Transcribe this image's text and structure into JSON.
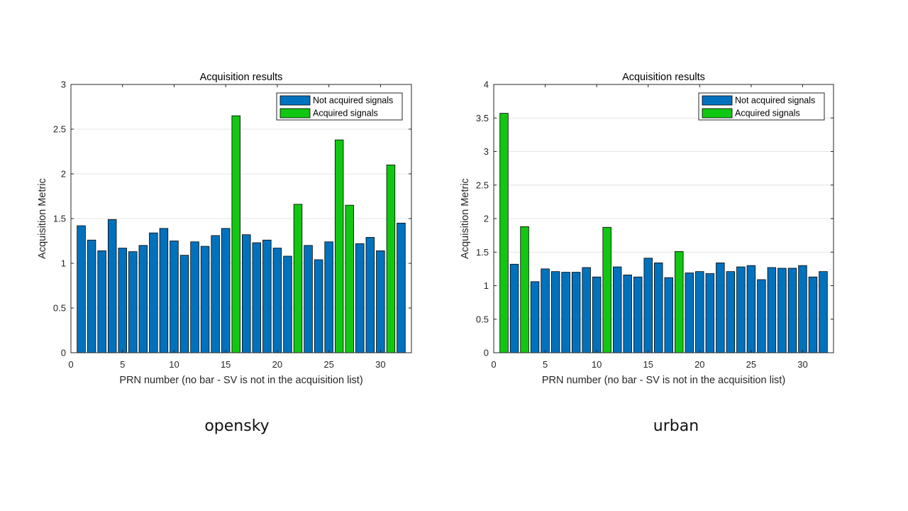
{
  "colors": {
    "not_acquired": "#0072BD",
    "acquired": "#11C711",
    "grid": "#e4e4e4",
    "axis": "#262626"
  },
  "chart_data": [
    {
      "type": "bar",
      "caption": "opensky",
      "title": "Acquisition results",
      "xlabel": "PRN number (no bar - SV is not in the acquisition list)",
      "ylabel": "Acquisition Metric",
      "xlim": [
        0,
        33
      ],
      "ylim": [
        0,
        3
      ],
      "xticks": [
        0,
        5,
        10,
        15,
        20,
        25,
        30
      ],
      "yticks": [
        0,
        0.5,
        1,
        1.5,
        2,
        2.5,
        3
      ],
      "grid": "horizontal",
      "legend_position": "top-right",
      "legend": [
        "Not acquired signals",
        "Acquired signals"
      ],
      "x": [
        1,
        2,
        3,
        4,
        5,
        6,
        7,
        8,
        9,
        10,
        11,
        12,
        13,
        14,
        15,
        16,
        17,
        18,
        19,
        20,
        21,
        22,
        23,
        24,
        25,
        26,
        27,
        28,
        29,
        30,
        31,
        32
      ],
      "values": [
        1.42,
        1.26,
        1.14,
        1.49,
        1.17,
        1.13,
        1.2,
        1.34,
        1.39,
        1.25,
        1.09,
        1.24,
        1.19,
        1.31,
        1.39,
        2.65,
        1.32,
        1.23,
        1.26,
        1.17,
        1.08,
        1.66,
        1.2,
        1.04,
        1.24,
        2.38,
        1.65,
        1.22,
        1.29,
        1.14,
        2.1,
        1.45
      ],
      "acquired": [
        16,
        22,
        26,
        27,
        31
      ]
    },
    {
      "type": "bar",
      "caption": "urban",
      "title": "Acquisition results",
      "xlabel": "PRN number (no bar - SV is not in the acquisition list)",
      "ylabel": "Acquisition Metric",
      "xlim": [
        0,
        33
      ],
      "ylim": [
        0,
        4
      ],
      "xticks": [
        0,
        5,
        10,
        15,
        20,
        25,
        30
      ],
      "yticks": [
        0,
        0.5,
        1,
        1.5,
        2,
        2.5,
        3,
        3.5,
        4
      ],
      "grid": "horizontal",
      "legend_position": "top-right",
      "legend": [
        "Not acquired signals",
        "Acquired signals"
      ],
      "x": [
        1,
        2,
        3,
        4,
        5,
        6,
        7,
        8,
        9,
        10,
        11,
        12,
        13,
        14,
        15,
        16,
        17,
        18,
        19,
        20,
        21,
        22,
        23,
        24,
        25,
        26,
        27,
        28,
        29,
        30,
        31,
        32
      ],
      "values": [
        3.57,
        1.32,
        1.88,
        1.06,
        1.25,
        1.21,
        1.2,
        1.2,
        1.27,
        1.13,
        1.87,
        1.28,
        1.16,
        1.13,
        1.41,
        1.34,
        1.12,
        1.51,
        1.19,
        1.21,
        1.18,
        1.34,
        1.21,
        1.28,
        1.3,
        1.09,
        1.27,
        1.26,
        1.26,
        1.3,
        1.13,
        1.21
      ],
      "acquired": [
        1,
        3,
        11,
        18
      ]
    }
  ]
}
